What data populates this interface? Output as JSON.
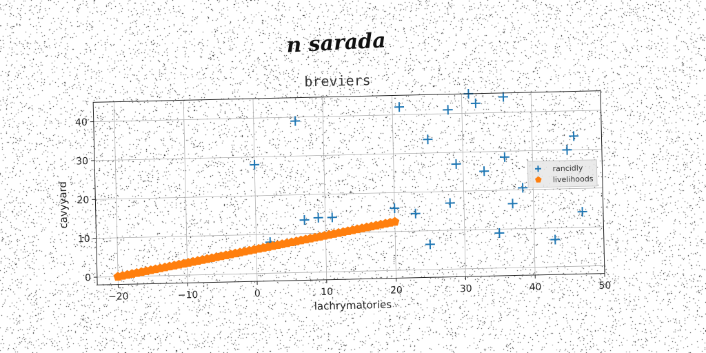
{
  "figure": {
    "suptitle": "n sarada"
  },
  "colors": {
    "rancidly": "#1f77b4",
    "livelihoods": "#ff7f0e",
    "grid": "#b0b0b0"
  },
  "chart_data": {
    "type": "scatter",
    "title": "breviers",
    "xlabel": "lachrymatories",
    "ylabel": "cavyyard",
    "xlim": [
      -23,
      50
    ],
    "ylim": [
      -2,
      45
    ],
    "xticks": [
      -20,
      -10,
      0,
      10,
      20,
      30,
      40,
      50
    ],
    "yticks": [
      0,
      10,
      20,
      30,
      40
    ],
    "grid": true,
    "legend_position": "center-right",
    "series": [
      {
        "name": "rancidly",
        "marker": "plus",
        "points": [
          [
            0,
            28
          ],
          [
            6,
            39
          ],
          [
            2,
            8
          ],
          [
            7,
            13.5
          ],
          [
            9,
            14
          ],
          [
            11,
            14
          ],
          [
            20,
            16
          ],
          [
            21,
            42
          ],
          [
            23,
            14.5
          ],
          [
            25,
            6.5
          ],
          [
            25,
            33.5
          ],
          [
            28,
            41
          ],
          [
            28,
            17
          ],
          [
            29,
            27
          ],
          [
            31,
            45
          ],
          [
            32,
            42.5
          ],
          [
            33,
            25
          ],
          [
            35,
            9
          ],
          [
            36,
            44
          ],
          [
            36,
            28.5
          ],
          [
            37,
            16.5
          ],
          [
            38.5,
            20.5
          ],
          [
            43,
            7
          ],
          [
            45,
            30
          ],
          [
            46,
            33.5
          ],
          [
            47,
            14
          ]
        ]
      },
      {
        "name": "livelihoods",
        "marker": "pentagon",
        "line": {
          "x_start": -20,
          "x_end": 20,
          "y_start": 0,
          "y_end": 12.5,
          "count": 60
        }
      }
    ]
  }
}
